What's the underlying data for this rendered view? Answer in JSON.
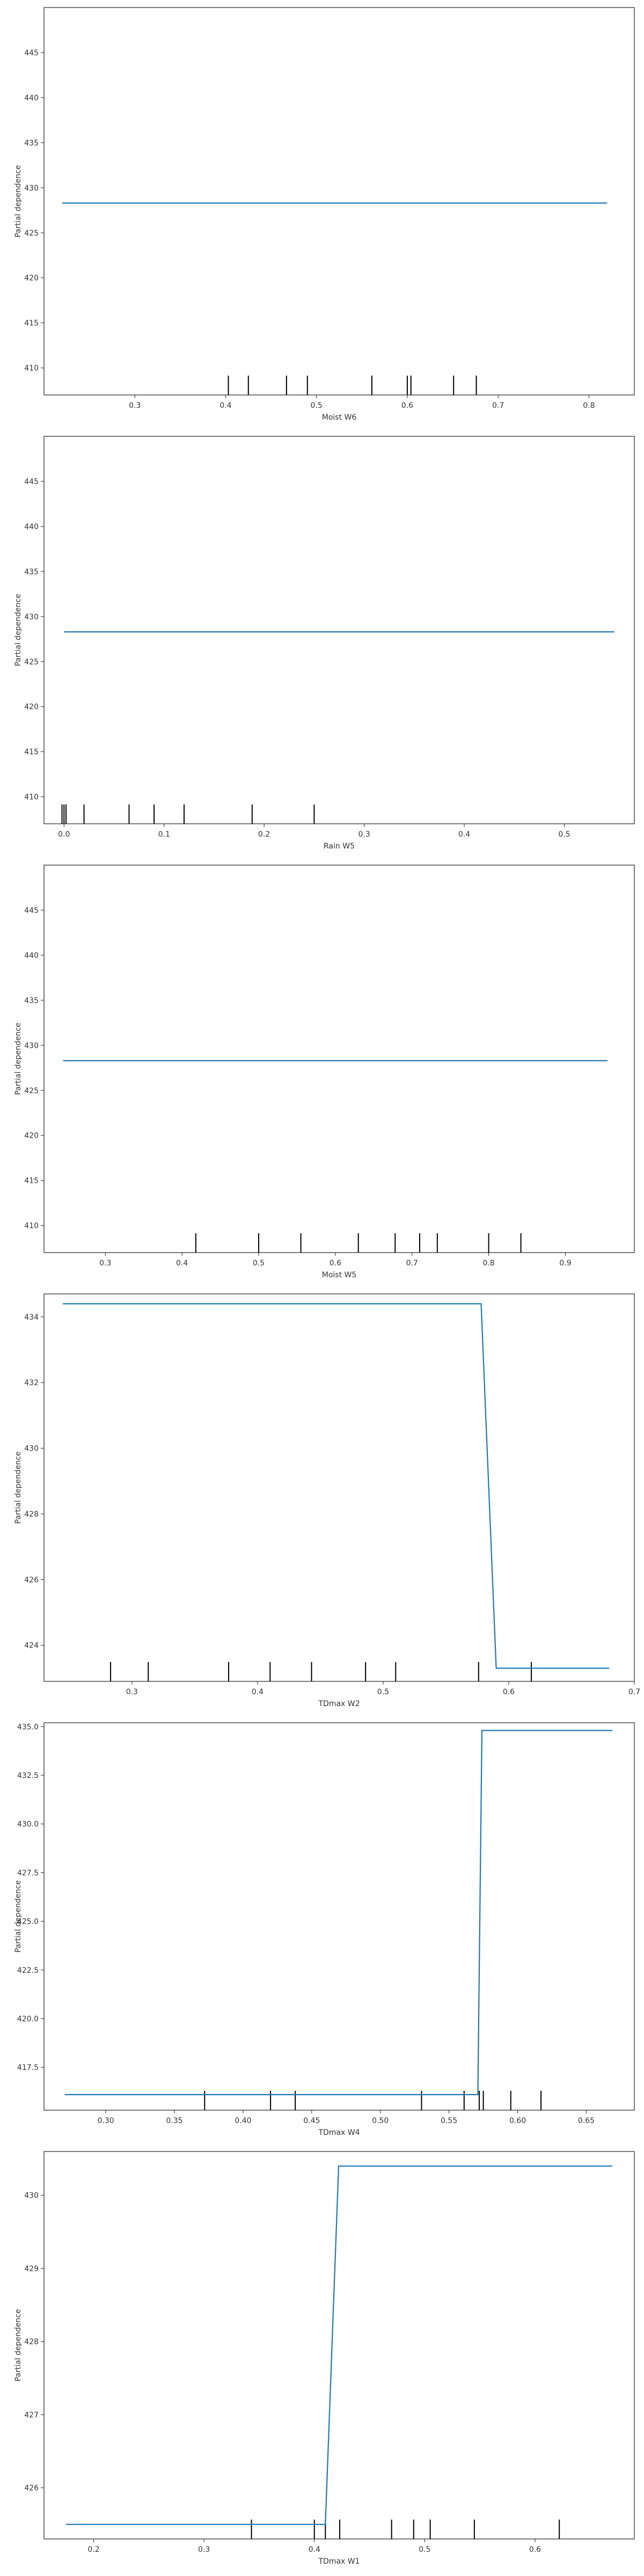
{
  "chart_data": [
    {
      "type": "line",
      "xlabel": "Moist W6",
      "ylabel": "Partial dependence",
      "xlim": [
        0.2,
        0.85
      ],
      "ylim": [
        407,
        450
      ],
      "xticks": [
        "0.3",
        "0.4",
        "0.5",
        "0.6",
        "0.7",
        "0.8"
      ],
      "yticks": [
        "410",
        "415",
        "420",
        "425",
        "430",
        "435",
        "440",
        "445"
      ],
      "line": {
        "x": [
          0.22,
          0.82
        ],
        "y": [
          428.3,
          428.3
        ]
      },
      "deciles": [
        0.403,
        0.425,
        0.467,
        0.49,
        0.561,
        0.6,
        0.604,
        0.651,
        0.676
      ],
      "line_color": "#1f77b4"
    },
    {
      "type": "line",
      "xlabel": "Rain W5",
      "ylabel": "Partial dependence",
      "xlim": [
        -0.02,
        0.57
      ],
      "ylim": [
        407,
        450
      ],
      "xticks": [
        "0.0",
        "0.1",
        "0.2",
        "0.3",
        "0.4",
        "0.5"
      ],
      "yticks": [
        "410",
        "415",
        "420",
        "425",
        "430",
        "435",
        "440",
        "445"
      ],
      "line": {
        "x": [
          0.0,
          0.55
        ],
        "y": [
          428.3,
          428.3
        ]
      },
      "deciles": [
        -0.002,
        0.0,
        0.002,
        0.02,
        0.065,
        0.09,
        0.12,
        0.188,
        0.25
      ],
      "line_color": "#1f77b4"
    },
    {
      "type": "line",
      "xlabel": "Moist W5",
      "ylabel": "Partial dependence",
      "xlim": [
        0.22,
        0.99
      ],
      "ylim": [
        407,
        450
      ],
      "xticks": [
        "0.3",
        "0.4",
        "0.5",
        "0.6",
        "0.7",
        "0.8",
        "0.9"
      ],
      "yticks": [
        "410",
        "415",
        "420",
        "425",
        "430",
        "435",
        "440",
        "445"
      ],
      "line": {
        "x": [
          0.245,
          0.955
        ],
        "y": [
          428.3,
          428.3
        ]
      },
      "deciles": [
        0.418,
        0.5,
        0.555,
        0.63,
        0.678,
        0.71,
        0.733,
        0.8,
        0.842
      ],
      "line_color": "#1f77b4"
    },
    {
      "type": "line",
      "xlabel": "TDmax W2",
      "ylabel": "Partial dependence",
      "xlim": [
        0.23,
        0.7
      ],
      "ylim": [
        422.9,
        434.7
      ],
      "xticks": [
        "0.3",
        "0.4",
        "0.5",
        "0.6",
        "0.7"
      ],
      "yticks": [
        "424",
        "426",
        "428",
        "430",
        "432",
        "434"
      ],
      "line": {
        "x": [
          0.245,
          0.578,
          0.59,
          0.68
        ],
        "y": [
          434.4,
          434.4,
          423.3,
          423.3
        ]
      },
      "deciles": [
        0.283,
        0.313,
        0.377,
        0.41,
        0.443,
        0.486,
        0.51,
        0.576,
        0.618
      ],
      "line_color": "#1f77b4"
    },
    {
      "type": "line",
      "xlabel": "TDmax W4",
      "ylabel": "Partial dependence",
      "xlim": [
        0.255,
        0.685
      ],
      "ylim": [
        415.3,
        435.2
      ],
      "xticks": [
        "0.30",
        "0.35",
        "0.40",
        "0.45",
        "0.50",
        "0.55",
        "0.60",
        "0.65"
      ],
      "yticks": [
        "417.5",
        "420.0",
        "422.5",
        "425.0",
        "427.5",
        "430.0",
        "432.5",
        "435.0"
      ],
      "line": {
        "x": [
          0.27,
          0.571,
          0.574,
          0.669
        ],
        "y": [
          416.1,
          416.1,
          434.8,
          434.8
        ]
      },
      "deciles": [
        0.372,
        0.42,
        0.438,
        0.53,
        0.561,
        0.572,
        0.575,
        0.595,
        0.617
      ],
      "line_color": "#1f77b4"
    },
    {
      "type": "line",
      "xlabel": "TDmax W1",
      "ylabel": "Partial dependence",
      "xlim": [
        0.155,
        0.69
      ],
      "ylim": [
        425.3,
        430.6
      ],
      "xticks": [
        "0.2",
        "0.3",
        "0.4",
        "0.5",
        "0.6"
      ],
      "yticks": [
        "426",
        "427",
        "428",
        "429",
        "430"
      ],
      "line": {
        "x": [
          0.175,
          0.41,
          0.422,
          0.67
        ],
        "y": [
          425.5,
          425.5,
          430.4,
          430.4
        ]
      },
      "deciles": [
        0.343,
        0.4,
        0.41,
        0.423,
        0.47,
        0.49,
        0.505,
        0.545,
        0.622
      ],
      "line_color": "#1f77b4"
    }
  ]
}
